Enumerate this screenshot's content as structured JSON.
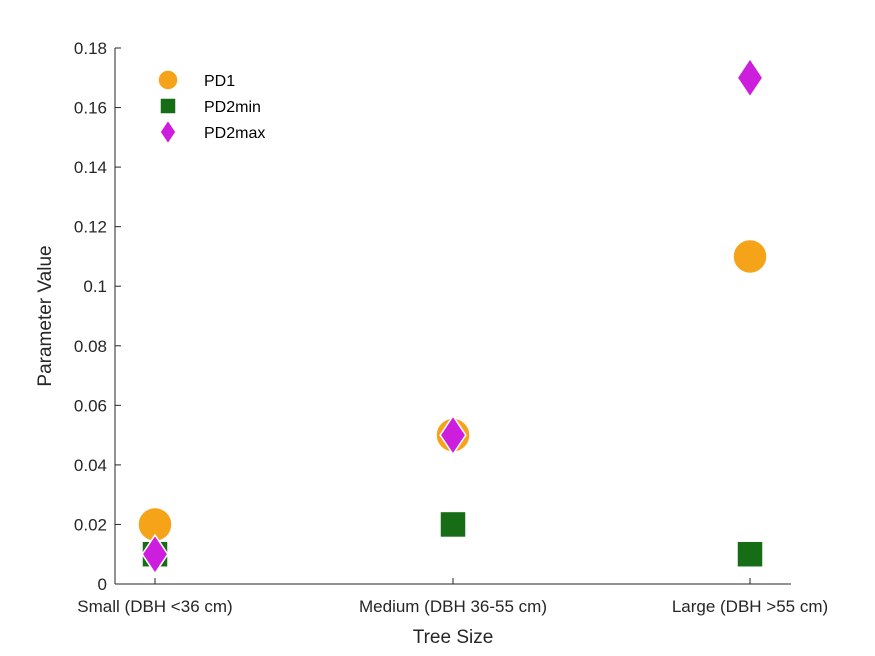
{
  "chart_data": {
    "type": "scatter",
    "xlabel": "Tree Size",
    "ylabel": "Parameter Value",
    "categories": [
      "Small (DBH <36 cm)",
      "Medium (DBH 36-55 cm)",
      "Large (DBH >55 cm)"
    ],
    "ylim": [
      0,
      0.18
    ],
    "yticks": [
      "0",
      "0.02",
      "0.04",
      "0.06",
      "0.08",
      "0.1",
      "0.12",
      "0.14",
      "0.16",
      "0.18"
    ],
    "grid": false,
    "legend_position": "top-left",
    "series": [
      {
        "name": "PD1",
        "marker": "circle",
        "color": "#F5A319",
        "values": [
          0.02,
          0.05,
          0.11
        ]
      },
      {
        "name": "PD2min",
        "marker": "square",
        "color": "#176D16",
        "values": [
          0.01,
          0.02,
          0.01
        ]
      },
      {
        "name": "PD2max",
        "marker": "diamond",
        "color": "#CC1EDC",
        "values": [
          0.01,
          0.05,
          0.17
        ]
      }
    ]
  }
}
